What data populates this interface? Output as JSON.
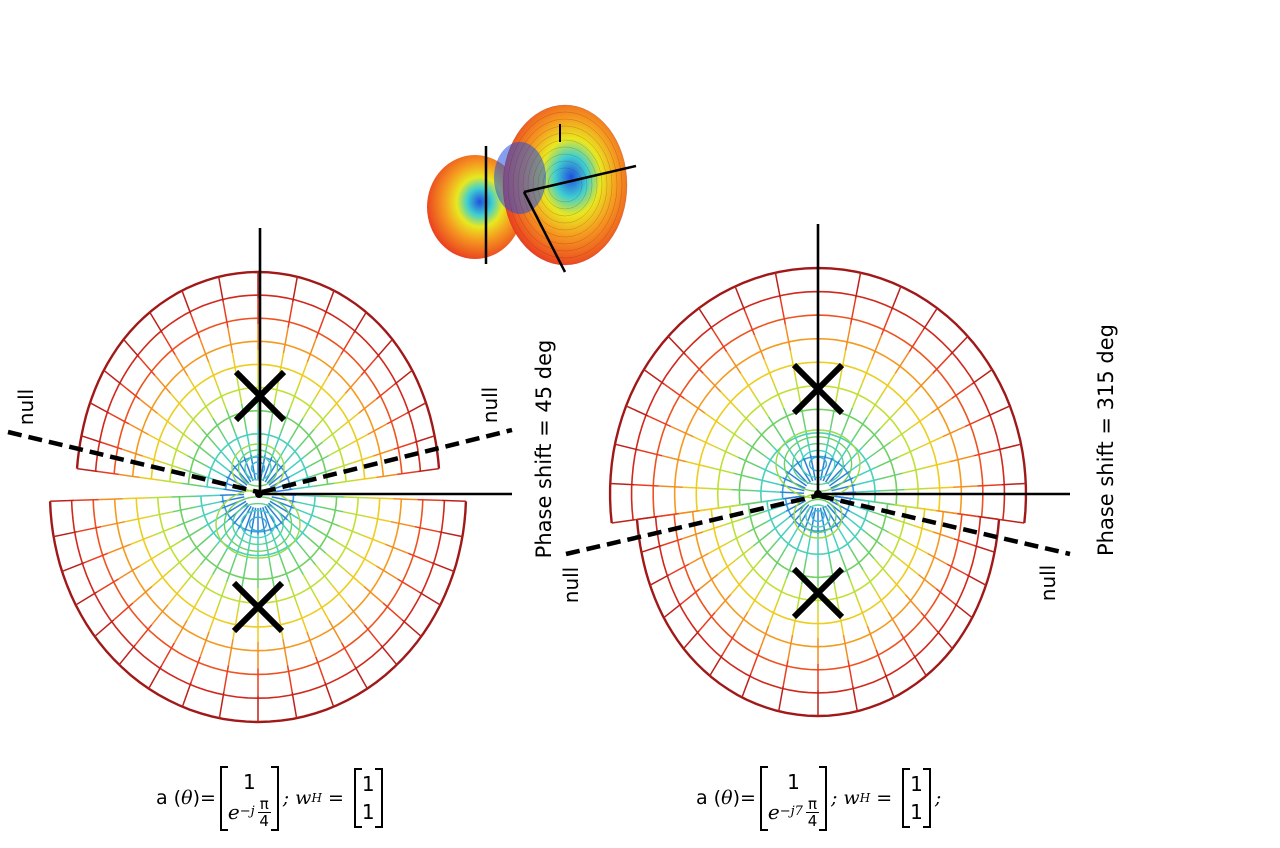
{
  "left_panel": {
    "phase_label": "Phase shift = 45 deg",
    "null_left": "null",
    "null_right": "null",
    "equation": {
      "prefix": "a (",
      "theta": "θ",
      "suffix": ")=",
      "vector_top": "1",
      "vector_bottom_exp": "e",
      "vector_bottom_pow": "−j",
      "frac_num": "π",
      "frac_den": "4",
      "weight_text": "; w",
      "weight_sup": "H",
      "weight_eq": " = ",
      "w_top": "1",
      "w_bottom": "1",
      "tail": ""
    }
  },
  "right_panel": {
    "phase_label": "Phase shift = 315 deg",
    "null_left": "null",
    "null_right": "null",
    "equation": {
      "prefix": "a (",
      "theta": "θ",
      "suffix": ")=",
      "vector_top": "1",
      "vector_bottom_exp": "e",
      "vector_bottom_pow": "−j7",
      "frac_num": "π",
      "frac_den": "4",
      "weight_text": "; w",
      "weight_sup": "H",
      "weight_eq": " = ",
      "w_top": "1",
      "w_bottom": "1",
      "tail": ";"
    }
  },
  "colors": {
    "outer": "#a01818",
    "red": "#e83020",
    "orange": "#f59a20",
    "yellow": "#e8e820",
    "green": "#70d060",
    "cyan": "#40d0d0",
    "blue": "#2050e0",
    "axis": "#000000"
  }
}
